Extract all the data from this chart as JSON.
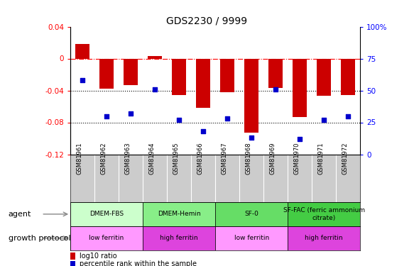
{
  "title": "GDS2230 / 9999",
  "samples": [
    "GSM81961",
    "GSM81962",
    "GSM81963",
    "GSM81964",
    "GSM81965",
    "GSM81966",
    "GSM81967",
    "GSM81968",
    "GSM81969",
    "GSM81970",
    "GSM81971",
    "GSM81972"
  ],
  "log10_ratio": [
    0.018,
    -0.038,
    -0.033,
    0.003,
    -0.046,
    -0.062,
    -0.042,
    -0.093,
    -0.037,
    -0.073,
    -0.047,
    -0.046
  ],
  "percentile_rank": [
    58,
    30,
    32,
    51,
    27,
    18,
    28,
    13,
    51,
    12,
    27,
    30
  ],
  "bar_color": "#cc0000",
  "dot_color": "#0000cc",
  "ylim_left": [
    -0.12,
    0.04
  ],
  "ylim_right": [
    0,
    100
  ],
  "yticks_left": [
    0.04,
    0.0,
    -0.04,
    -0.08,
    -0.12
  ],
  "yticks_right": [
    100,
    75,
    50,
    25,
    0
  ],
  "hline_y": 0.0,
  "dotted_lines": [
    -0.04,
    -0.08
  ],
  "agent_groups": [
    {
      "label": "DMEM-FBS",
      "start": 0,
      "end": 3,
      "color": "#ccffcc"
    },
    {
      "label": "DMEM-Hemin",
      "start": 3,
      "end": 6,
      "color": "#88ee88"
    },
    {
      "label": "SF-0",
      "start": 6,
      "end": 9,
      "color": "#66dd66"
    },
    {
      "label": "SF-FAC (ferric ammonium\ncitrate)",
      "start": 9,
      "end": 12,
      "color": "#44cc44"
    }
  ],
  "protocol_groups": [
    {
      "label": "low ferritin",
      "start": 0,
      "end": 3,
      "color": "#ff99ff"
    },
    {
      "label": "high ferritin",
      "start": 3,
      "end": 6,
      "color": "#dd44dd"
    },
    {
      "label": "low ferritin",
      "start": 6,
      "end": 9,
      "color": "#ff99ff"
    },
    {
      "label": "high ferritin",
      "start": 9,
      "end": 12,
      "color": "#dd44dd"
    }
  ],
  "label_agent": "agent",
  "label_protocol": "growth protocol",
  "legend_bar_label": "log10 ratio",
  "legend_dot_label": "percentile rank within the sample",
  "background_color": "#ffffff",
  "plot_bg_color": "#ffffff",
  "sample_label_bg": "#cccccc"
}
